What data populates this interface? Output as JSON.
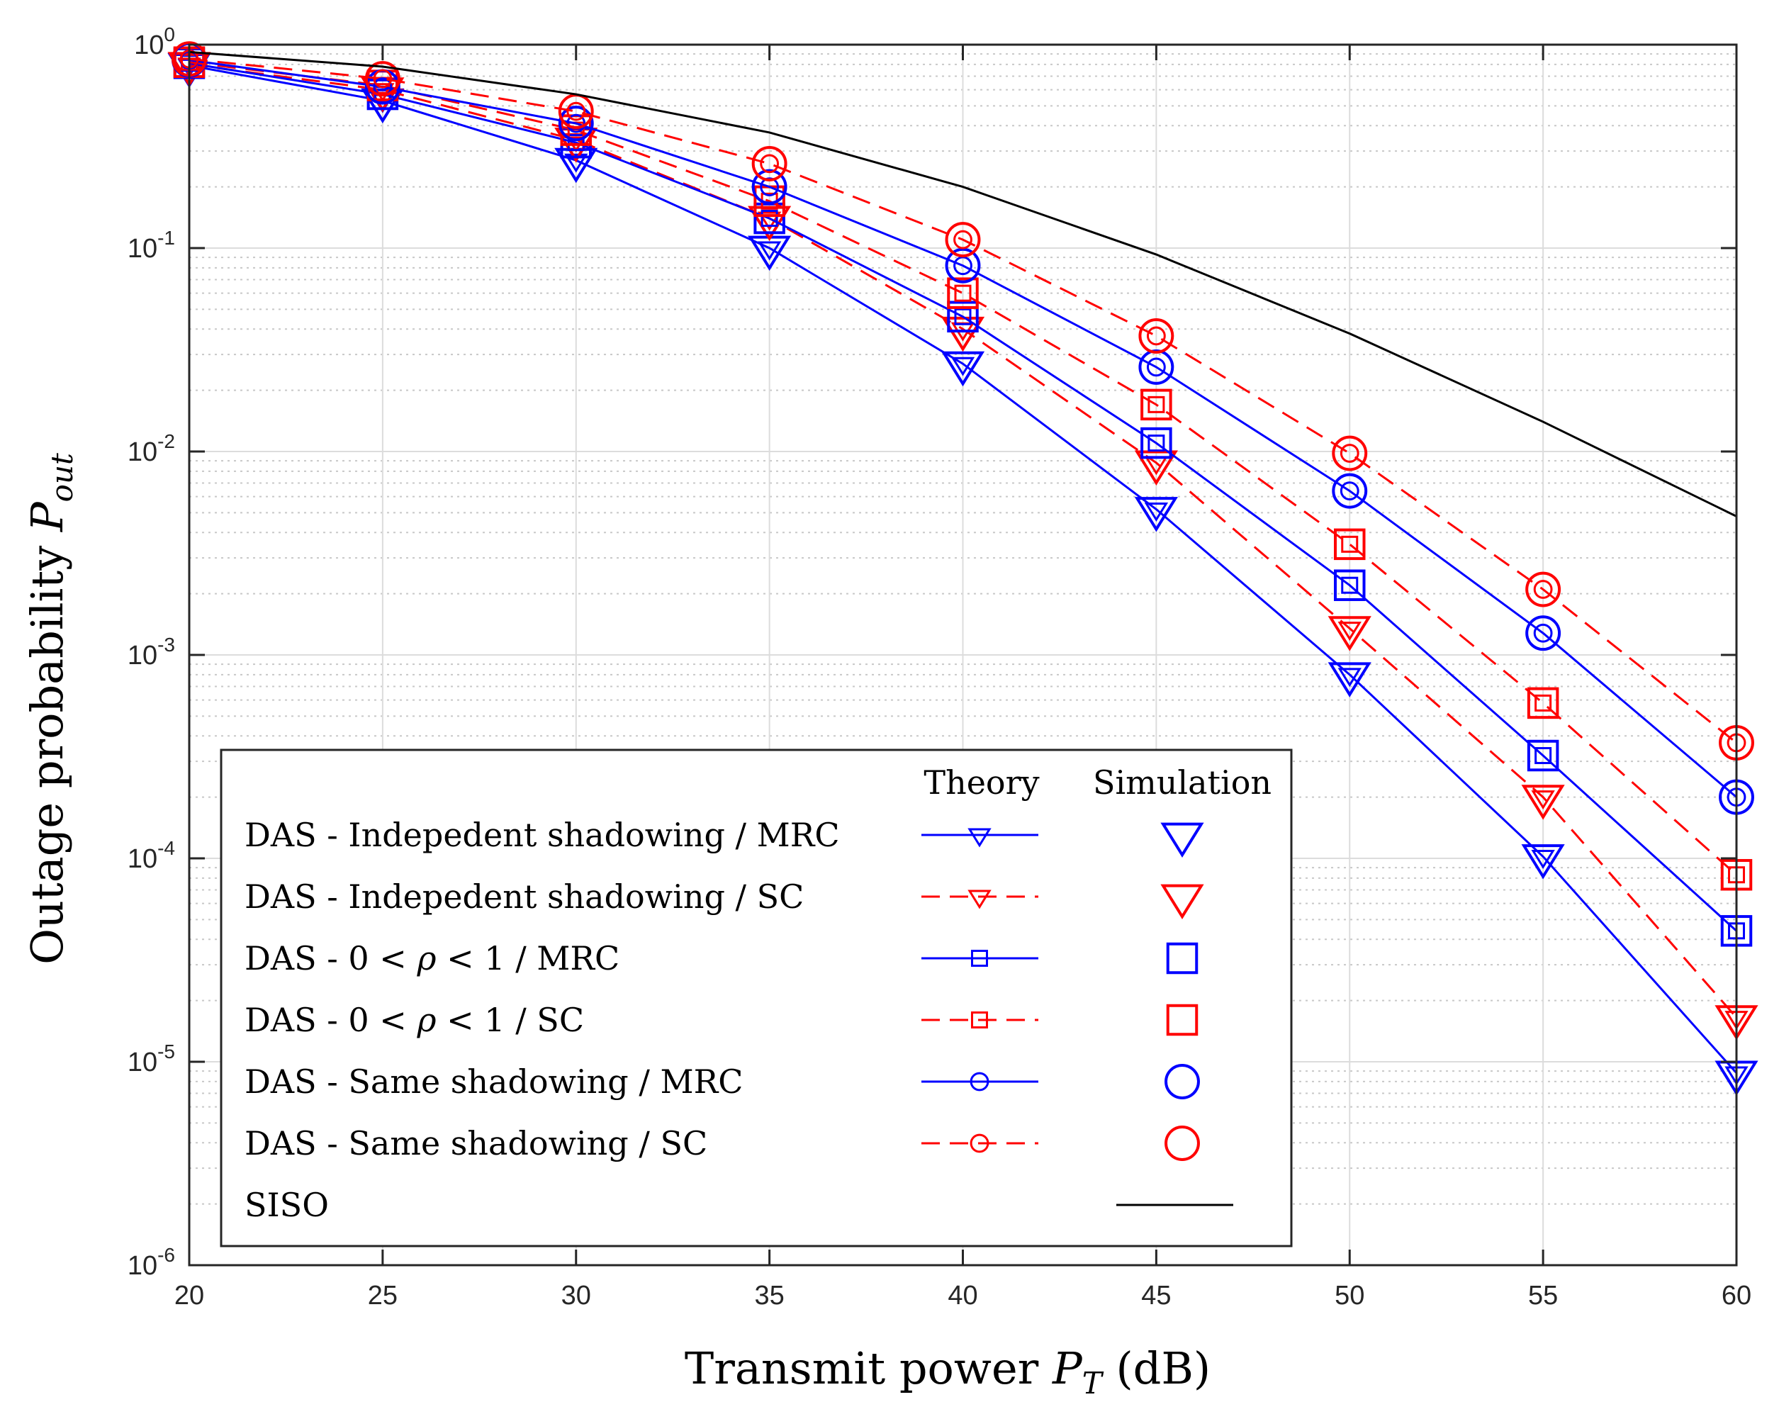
{
  "chart_data": {
    "type": "line",
    "xlabel_prefix": "Transmit power",
    "xlabel_symbol": "P",
    "xlabel_sub": "T",
    "xlabel_suffix": "(dB)",
    "ylabel_prefix": "Outage probability",
    "ylabel_symbol": "P",
    "ylabel_sub": "out",
    "xlim": [
      20,
      60
    ],
    "ylim": [
      1e-06,
      1
    ],
    "yscale": "log",
    "grid": true,
    "x": [
      20,
      25,
      30,
      35,
      40,
      45,
      50,
      55,
      60
    ],
    "x_tick_labels": [
      "20",
      "25",
      "30",
      "35",
      "40",
      "45",
      "50",
      "55",
      "60"
    ],
    "y_ticks": [
      {
        "value": 1,
        "base": "10",
        "exp": "0"
      },
      {
        "value": 0.1,
        "base": "10",
        "exp": "-1"
      },
      {
        "value": 0.01,
        "base": "10",
        "exp": "-2"
      },
      {
        "value": 0.001,
        "base": "10",
        "exp": "-3"
      },
      {
        "value": 0.0001,
        "base": "10",
        "exp": "-4"
      },
      {
        "value": 1e-05,
        "base": "10",
        "exp": "-5"
      },
      {
        "value": 1e-06,
        "base": "10",
        "exp": "-6"
      }
    ],
    "legend": {
      "placement": "lower-left",
      "header_theory": "Theory",
      "header_simulation": "Simulation"
    },
    "series": [
      {
        "name": "DAS - Indepedent shadowing / MRC",
        "color": "#0000ff",
        "dash": "solid",
        "marker": "triangle-down",
        "values": [
          0.79,
          0.53,
          0.27,
          0.1,
          0.027,
          0.0052,
          0.0008,
          0.000102,
          8.8e-06
        ],
        "sim_values": [
          0.79,
          0.53,
          0.27,
          0.1,
          0.027,
          0.0052,
          0.0008,
          0.000102,
          8.8e-06
        ]
      },
      {
        "name": "DAS - Indepedent shadowing / SC",
        "color": "#ff0000",
        "dash": "dashed",
        "marker": "triangle-down",
        "values": [
          0.8,
          0.6,
          0.34,
          0.14,
          0.04,
          0.0088,
          0.00135,
          0.0002,
          1.65e-05
        ],
        "sim_values": [
          0.8,
          0.6,
          0.34,
          0.14,
          0.04,
          0.0088,
          0.00135,
          0.0002,
          1.65e-05
        ]
      },
      {
        "name": "DAS - 0 < ρ < 1 / MRC",
        "name_parts": [
          "DAS - 0 < ",
          "ρ",
          " < 1 / MRC"
        ],
        "color": "#0000ff",
        "dash": "solid",
        "marker": "square",
        "values": [
          0.81,
          0.57,
          0.33,
          0.14,
          0.046,
          0.011,
          0.0022,
          0.00032,
          4.4e-05
        ],
        "sim_values": [
          0.81,
          0.57,
          0.33,
          0.14,
          0.046,
          0.011,
          0.0022,
          0.00032,
          4.4e-05
        ]
      },
      {
        "name": "DAS - 0 < ρ < 1 / SC",
        "name_parts": [
          "DAS - 0 < ",
          "ρ",
          " < 1 / SC"
        ],
        "color": "#ff0000",
        "dash": "dashed",
        "marker": "square",
        "values": [
          0.82,
          0.63,
          0.38,
          0.17,
          0.06,
          0.017,
          0.0035,
          0.00058,
          8.3e-05
        ],
        "sim_values": [
          0.82,
          0.63,
          0.38,
          0.17,
          0.06,
          0.017,
          0.0035,
          0.00058,
          8.3e-05
        ]
      },
      {
        "name": "DAS - Same shadowing / MRC",
        "color": "#0000ff",
        "dash": "solid",
        "marker": "circle",
        "values": [
          0.84,
          0.62,
          0.41,
          0.2,
          0.082,
          0.026,
          0.0064,
          0.00128,
          0.0002
        ],
        "sim_values": [
          0.84,
          0.62,
          0.41,
          0.2,
          0.082,
          0.026,
          0.0064,
          0.00128,
          0.0002
        ]
      },
      {
        "name": "DAS - Same shadowing / SC",
        "color": "#ff0000",
        "dash": "dashed",
        "marker": "circle",
        "values": [
          0.85,
          0.68,
          0.47,
          0.26,
          0.11,
          0.037,
          0.0098,
          0.0021,
          0.00037
        ],
        "sim_values": [
          0.85,
          0.68,
          0.47,
          0.26,
          0.11,
          0.037,
          0.0098,
          0.0021,
          0.00037
        ]
      },
      {
        "name": "SISO",
        "color": "#000000",
        "dash": "solid",
        "marker": "none",
        "values": [
          0.92,
          0.78,
          0.57,
          0.37,
          0.2,
          0.093,
          0.038,
          0.014,
          0.0048
        ]
      }
    ]
  }
}
